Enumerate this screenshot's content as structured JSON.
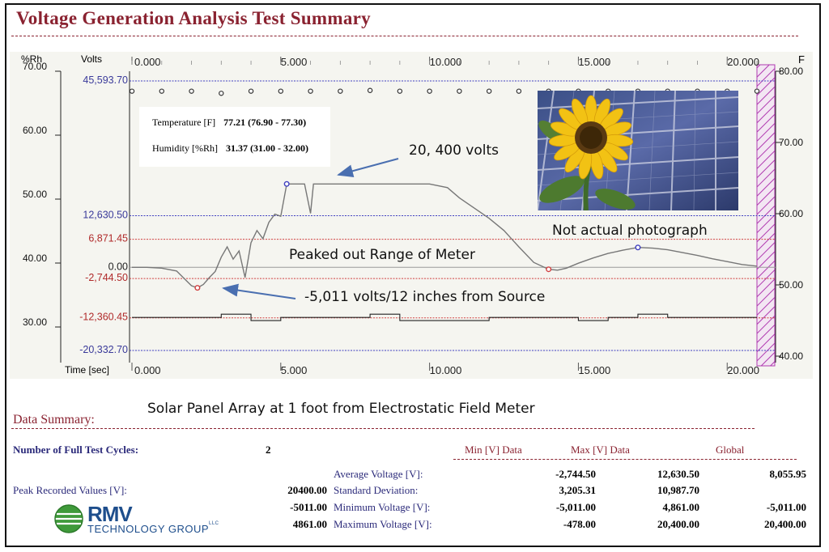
{
  "header": {
    "title": "Voltage Generation Analysis Test Summary"
  },
  "axes": {
    "left_rh_label": "%Rh",
    "left_volts_label": "Volts",
    "right_label": "F",
    "time_label": "Time [sec]",
    "rh_ticks": [
      "70.00",
      "60.00",
      "50.00",
      "40.00",
      "30.00"
    ],
    "f_ticks": [
      "80.00",
      "70.00",
      "60.00",
      "50.00",
      "40.00"
    ],
    "time_ticks": [
      "0.000",
      "5.000",
      "10.000",
      "15.000",
      "20.000"
    ]
  },
  "info_box": {
    "temperature_label": "Temperature [F]",
    "temperature_value": "77.21 (76.90 - 77.30)",
    "humidity_label": "Humidity [%Rh]",
    "humidity_value": "31.37 (31.00 - 32.00)"
  },
  "annotations": {
    "peak": "20, 400 volts",
    "photo_note": "Not actual photograph",
    "range": "Peaked out Range of Meter",
    "low": "-5,011 volts/12 inches from Source"
  },
  "chart_data": {
    "type": "line",
    "title": "Voltage Generation Analysis Test Summary",
    "xlabel": "Time [sec]",
    "ylabel": "Volts",
    "xlim": [
      0,
      21
    ],
    "ylim": [
      -20332.7,
      45593.7
    ],
    "reference_lines": [
      {
        "label": "45,593.70",
        "value": 45593.7,
        "color": "#4040c0"
      },
      {
        "label": "12,630.50",
        "value": 12630.5,
        "color": "#4040c0"
      },
      {
        "label": "6,871.45",
        "value": 6871.45,
        "color": "#d04040"
      },
      {
        "label": "0.00",
        "value": 0,
        "color": "#999999"
      },
      {
        "label": "-2,744.50",
        "value": -2744.5,
        "color": "#d04040"
      },
      {
        "label": "-12,360.45",
        "value": -12360.45,
        "color": "#d04040"
      },
      {
        "label": "-20,332.70",
        "value": -20332.7,
        "color": "#4040c0"
      }
    ],
    "series": [
      {
        "name": "Voltage",
        "x": [
          0,
          0.5,
          1,
          1.5,
          2,
          2.2,
          2.4,
          2.6,
          2.8,
          3,
          3.2,
          3.4,
          3.6,
          3.8,
          4,
          4.2,
          4.4,
          4.6,
          4.8,
          5,
          5.2,
          5.4,
          5.6,
          5.8,
          6.0,
          6.1,
          6.2,
          7,
          8,
          9,
          10,
          10.6,
          11,
          11.5,
          12,
          12.5,
          13,
          13.5,
          14,
          14.3,
          14.6,
          15,
          15.5,
          16,
          16.5,
          17,
          17.5,
          18,
          18.5,
          19,
          19.5,
          20,
          20.5,
          21
        ],
        "y": [
          0,
          0,
          -200,
          -900,
          -4500,
          -5011,
          -4200,
          -2500,
          -1000,
          2500,
          5000,
          2000,
          4000,
          -2500,
          6000,
          9000,
          7000,
          11000,
          13000,
          12500,
          20400,
          20400,
          20400,
          20400,
          13200,
          20400,
          20400,
          20400,
          20400,
          20400,
          20400,
          19500,
          17000,
          14500,
          12000,
          9000,
          5000,
          1200,
          -478,
          -700,
          -200,
          1000,
          2300,
          3400,
          4200,
          4861,
          4700,
          4300,
          3600,
          2900,
          2100,
          1400,
          700,
          300
        ]
      },
      {
        "name": "Humidity",
        "x": [
          0,
          1,
          2,
          3,
          4,
          5,
          6,
          7,
          8,
          9,
          10,
          11,
          12,
          13,
          14,
          15,
          16,
          17,
          18,
          19,
          20,
          21
        ],
        "y": [
          31.5,
          31.5,
          31.5,
          32,
          31.0,
          31.5,
          31.5,
          31.5,
          32,
          31.0,
          31.0,
          31.0,
          31.5,
          31.5,
          31.5,
          31.0,
          31.5,
          32,
          31.5,
          31.5,
          31.5,
          31.5
        ]
      },
      {
        "name": "Temperature",
        "x": [
          0,
          1,
          2,
          3,
          4,
          5,
          6,
          7,
          8,
          9,
          10,
          11,
          12,
          13,
          14,
          15,
          16,
          17,
          18,
          19,
          20,
          21
        ],
        "y": [
          77.2,
          77.2,
          77.2,
          76.9,
          77.2,
          77.2,
          77.2,
          77.2,
          77.3,
          77.2,
          77.2,
          77.2,
          77.2,
          77.2,
          77.2,
          77.2,
          77.2,
          77.2,
          77.2,
          77.2,
          77.2,
          77.2
        ]
      }
    ],
    "markers": [
      {
        "x": 2.2,
        "y": -5011,
        "color": "#d04040"
      },
      {
        "x": 5.2,
        "y": 20400,
        "color": "#4040c0"
      },
      {
        "x": 14.0,
        "y": -478,
        "color": "#d04040"
      },
      {
        "x": 17.0,
        "y": 4861,
        "color": "#4040c0"
      }
    ]
  },
  "subtitle": "Solar Panel Array at 1 foot from Electrostatic Field Meter",
  "summary": {
    "title": "Data Summary:",
    "cycles_label": "Number of Full Test Cycles:",
    "cycles_value": "2",
    "col_min": "Min [V] Data",
    "col_max": "Max [V] Data",
    "col_global": "Global",
    "peak_label": "Peak Recorded Values [V]:",
    "rows": [
      {
        "peak": "",
        "label": "Average Voltage [V]:",
        "min": "-2,744.50",
        "max": "12,630.50",
        "global": "8,055.95"
      },
      {
        "peak": "20400.00",
        "label": "Standard Deviation:",
        "min": "3,205.31",
        "max": "10,987.70",
        "global": ""
      },
      {
        "peak": "-5011.00",
        "label": "Minimum Voltage [V]:",
        "min": "-5,011.00",
        "max": "4,861.00",
        "global": "-5,011.00"
      },
      {
        "peak": "4861.00",
        "label": "Maximum Voltage [V]:",
        "min": "-478.00",
        "max": "20,400.00",
        "global": "20,400.00"
      }
    ]
  },
  "logo": {
    "name": "RMV",
    "tagline": "TECHNOLOGY GROUP",
    "suffix": "LLC"
  }
}
